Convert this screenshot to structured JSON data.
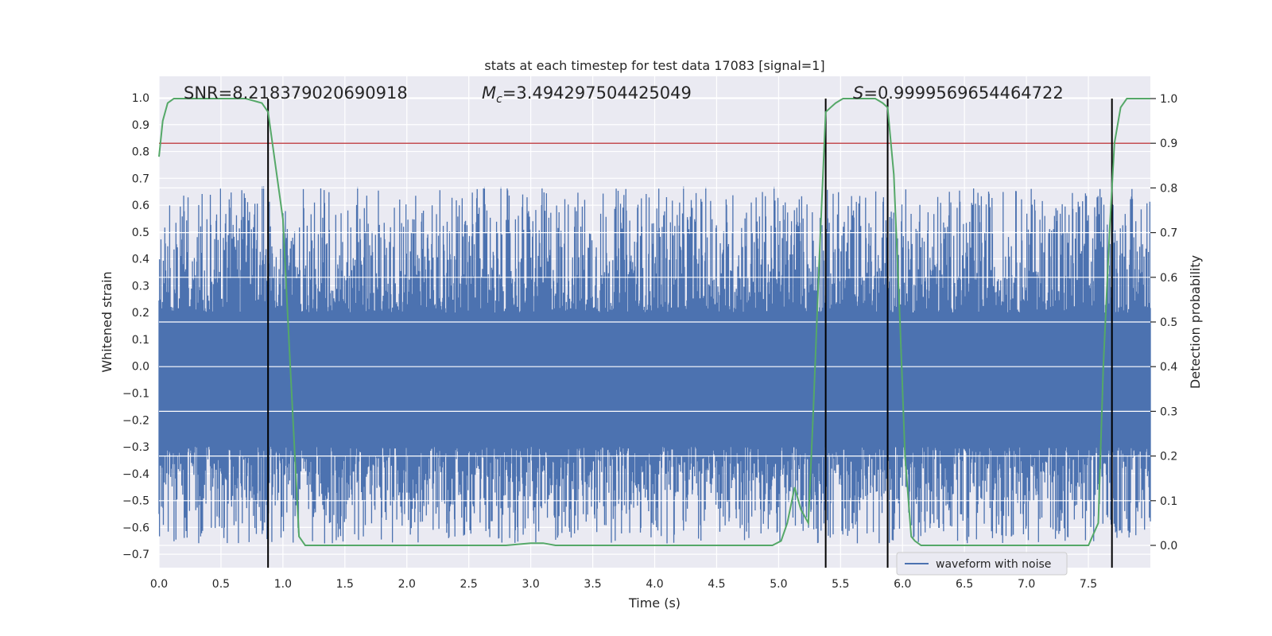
{
  "chart_data": {
    "type": "line",
    "title": "stats at each timestep for test data 17083 [signal=1]",
    "xlabel": "Time (s)",
    "ylabel": "Whitened strain",
    "y2label": "Detection probability",
    "xlim": [
      0.0,
      8.0
    ],
    "ylim": [
      -0.75,
      1.08
    ],
    "y2lim": [
      -0.05,
      1.0
    ],
    "xticks": [
      0.0,
      0.5,
      1.0,
      1.5,
      2.0,
      2.5,
      3.0,
      3.5,
      4.0,
      4.5,
      5.0,
      5.5,
      6.0,
      6.5,
      7.0,
      7.5
    ],
    "xtick_labels": [
      "0.0",
      "0.5",
      "1.0",
      "1.5",
      "2.0",
      "2.5",
      "3.0",
      "3.5",
      "4.0",
      "4.5",
      "5.0",
      "5.5",
      "6.0",
      "6.5",
      "7.0",
      "7.5"
    ],
    "yticks": [
      1.0,
      0.9,
      0.8,
      0.7,
      0.6,
      0.5,
      0.4,
      0.3,
      0.2,
      0.1,
      0.0,
      -0.1,
      -0.2,
      -0.3,
      -0.4,
      -0.5,
      -0.6,
      -0.7
    ],
    "ytick_labels": [
      "1.0",
      "0.9",
      "0.8",
      "0.7",
      "0.6",
      "0.5",
      "0.4",
      "0.3",
      "0.2",
      "0.1",
      "0.0",
      "−0.1",
      "−0.2",
      "−0.3",
      "−0.4",
      "−0.5",
      "−0.6",
      "−0.7"
    ],
    "y2ticks": [
      1.0,
      0.9,
      0.8,
      0.7,
      0.6,
      0.5,
      0.4,
      0.3,
      0.2,
      0.1,
      0.0
    ],
    "y2tick_labels": [
      "1.0",
      "0.9",
      "0.8",
      "0.7",
      "0.6",
      "0.5",
      "0.4",
      "0.3",
      "0.2",
      "0.1",
      "0.0"
    ],
    "grid": true,
    "legend": {
      "entries": [
        "waveform with noise"
      ],
      "location": "lower-right"
    },
    "annotations": {
      "snr": "SNR=8.218379020690918",
      "mc_symbol": "M",
      "mc_sub": "c",
      "mc_value": "=3.494297504425049",
      "s_symbol": "S",
      "s_value": "=0.9999569654464722"
    },
    "threshold": {
      "value": 0.9,
      "axis": "y2",
      "color": "#c44e52"
    },
    "vertical_markers": {
      "x": [
        0.88,
        5.38,
        5.88,
        7.69
      ],
      "y_range": [
        -0.05,
        1.0
      ],
      "color": "#000000"
    },
    "waveform": {
      "name": "waveform with noise",
      "color": "#4c72b0",
      "x_range": [
        0.0,
        8.0
      ],
      "samples": 2048,
      "envelope": {
        "upper_min": 0.2,
        "upper_max": 0.67,
        "lower_min": -0.3,
        "lower_max": -0.66
      }
    },
    "detection_probability": {
      "color": "#55a868",
      "axis": "y2",
      "x": [
        0.0,
        0.03,
        0.07,
        0.12,
        0.3,
        0.5,
        0.7,
        0.83,
        0.88,
        0.95,
        1.0,
        1.05,
        1.1,
        1.13,
        1.18,
        1.3,
        1.5,
        1.7,
        2.0,
        2.5,
        2.8,
        3.0,
        3.1,
        3.2,
        3.5,
        4.0,
        4.5,
        4.7,
        4.95,
        5.02,
        5.07,
        5.13,
        5.18,
        5.24,
        5.28,
        5.33,
        5.38,
        5.42,
        5.46,
        5.52,
        5.6,
        5.78,
        5.84,
        5.88,
        5.93,
        5.98,
        6.02,
        6.07,
        6.1,
        6.15,
        6.2,
        6.5,
        7.0,
        7.3,
        7.5,
        7.58,
        7.62,
        7.67,
        7.71,
        7.76,
        7.81,
        7.87,
        7.93,
        8.0
      ],
      "y": [
        0.87,
        0.95,
        0.99,
        1.0,
        1.0,
        1.0,
        1.0,
        0.99,
        0.97,
        0.83,
        0.73,
        0.45,
        0.18,
        0.02,
        0.0,
        0.0,
        0.0,
        0.0,
        0.0,
        0.0,
        0.0,
        0.005,
        0.005,
        0.0,
        0.0,
        0.0,
        0.0,
        0.0,
        0.0,
        0.01,
        0.05,
        0.13,
        0.08,
        0.05,
        0.3,
        0.65,
        0.97,
        0.98,
        0.99,
        1.0,
        1.0,
        1.0,
        0.99,
        0.98,
        0.83,
        0.5,
        0.2,
        0.02,
        0.01,
        0.0,
        0.0,
        0.0,
        0.0,
        0.0,
        0.0,
        0.05,
        0.4,
        0.7,
        0.9,
        0.98,
        1.0,
        1.0,
        1.0,
        1.0
      ]
    }
  }
}
